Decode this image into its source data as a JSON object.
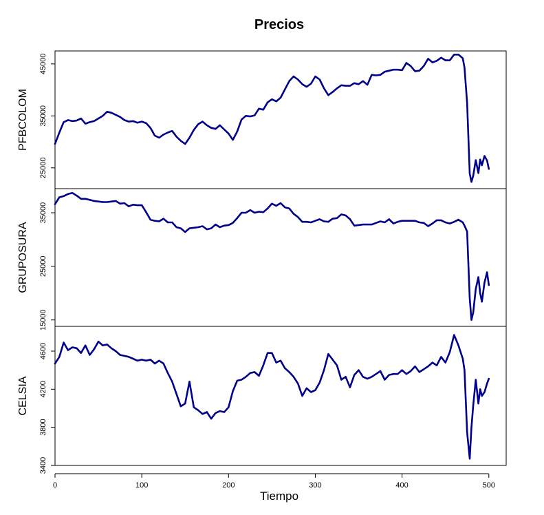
{
  "chart_data": {
    "type": "line",
    "title": "Precios",
    "xlabel": "Tiempo",
    "xlim": [
      0,
      520
    ],
    "x_ticks": [
      0,
      100,
      200,
      300,
      400,
      500
    ],
    "line_color": "#00008B",
    "grid": false,
    "panels": [
      {
        "name": "PFBCOLOM",
        "ylim": [
          21000,
          47500
        ],
        "y_ticks": [
          25000,
          35000,
          45000
        ],
        "series": {
          "x": [
            0,
            5,
            10,
            15,
            20,
            25,
            30,
            35,
            40,
            45,
            50,
            55,
            60,
            65,
            70,
            75,
            80,
            85,
            90,
            95,
            100,
            105,
            110,
            115,
            120,
            125,
            130,
            135,
            140,
            145,
            150,
            155,
            160,
            165,
            170,
            175,
            180,
            185,
            190,
            195,
            200,
            205,
            210,
            215,
            220,
            225,
            230,
            235,
            240,
            245,
            250,
            255,
            260,
            265,
            270,
            275,
            280,
            285,
            290,
            295,
            300,
            305,
            310,
            315,
            320,
            325,
            330,
            335,
            340,
            345,
            350,
            355,
            360,
            365,
            370,
            375,
            380,
            385,
            390,
            395,
            400,
            405,
            410,
            415,
            420,
            425,
            430,
            435,
            440,
            445,
            450,
            455,
            460,
            465,
            470,
            472,
            475,
            478,
            480,
            482,
            485,
            488,
            490,
            492,
            495,
            498,
            500
          ],
          "values": [
            29600,
            31800,
            33800,
            34200,
            34000,
            34100,
            34500,
            33500,
            33800,
            34000,
            34500,
            35000,
            35800,
            35600,
            35200,
            34800,
            34200,
            33900,
            34000,
            33700,
            33900,
            33600,
            32700,
            31200,
            30800,
            31400,
            31800,
            32100,
            31000,
            30200,
            29600,
            30800,
            32300,
            33400,
            33900,
            33200,
            32700,
            32500,
            33200,
            32400,
            31600,
            30400,
            32000,
            34300,
            35000,
            34900,
            35100,
            36400,
            36200,
            37600,
            38200,
            37800,
            38500,
            40100,
            41700,
            42600,
            42000,
            41100,
            40600,
            41200,
            42600,
            42000,
            40300,
            39000,
            39600,
            40300,
            40900,
            40800,
            40800,
            41300,
            41100,
            41700,
            41000,
            42900,
            42800,
            42900,
            43500,
            43700,
            43900,
            43900,
            43800,
            45200,
            44600,
            43600,
            43700,
            44600,
            46000,
            45300,
            45600,
            46200,
            45700,
            45700,
            46800,
            46800,
            46100,
            44300,
            37500,
            23900,
            22300,
            23500,
            26500,
            24000,
            26600,
            25500,
            27300,
            26400,
            24800
          ]
        }
      },
      {
        "name": "GRUPOSURA",
        "ylim": [
          13800,
          39500
        ],
        "y_ticks": [
          15000,
          25000,
          35000
        ],
        "series": {
          "x": [
            0,
            5,
            10,
            15,
            20,
            25,
            30,
            35,
            40,
            45,
            50,
            55,
            60,
            65,
            70,
            75,
            80,
            85,
            90,
            95,
            100,
            105,
            110,
            115,
            120,
            125,
            130,
            135,
            140,
            145,
            150,
            155,
            160,
            165,
            170,
            175,
            180,
            185,
            190,
            195,
            200,
            205,
            210,
            215,
            220,
            225,
            230,
            235,
            240,
            245,
            250,
            255,
            260,
            265,
            270,
            275,
            280,
            285,
            290,
            295,
            300,
            305,
            310,
            315,
            320,
            325,
            330,
            335,
            340,
            345,
            350,
            355,
            360,
            365,
            370,
            375,
            380,
            385,
            390,
            395,
            400,
            405,
            410,
            415,
            420,
            425,
            430,
            435,
            440,
            445,
            450,
            455,
            460,
            465,
            470,
            472,
            475,
            478,
            480,
            482,
            485,
            488,
            490,
            492,
            495,
            498,
            500
          ],
          "values": [
            36600,
            37900,
            38100,
            38500,
            38700,
            38200,
            37600,
            37600,
            37400,
            37200,
            37100,
            37000,
            37000,
            37100,
            37200,
            36700,
            36800,
            36200,
            36500,
            36400,
            36400,
            35100,
            33700,
            33500,
            33400,
            33900,
            33200,
            33200,
            32300,
            32100,
            31400,
            32100,
            32200,
            32300,
            32500,
            31900,
            32100,
            32800,
            32300,
            32600,
            32700,
            33100,
            34000,
            35000,
            35000,
            35500,
            35000,
            35200,
            35100,
            35800,
            36700,
            36300,
            36800,
            36000,
            35800,
            34800,
            34200,
            33300,
            33300,
            33200,
            33500,
            33800,
            33400,
            33300,
            33900,
            34000,
            34700,
            34500,
            33800,
            32600,
            32700,
            32800,
            32800,
            32800,
            33100,
            33400,
            33200,
            33800,
            33000,
            33300,
            33500,
            33500,
            33500,
            33500,
            33200,
            33100,
            32500,
            33000,
            33600,
            33600,
            33200,
            33000,
            33300,
            33700,
            33200,
            32600,
            31500,
            19000,
            15000,
            16400,
            20800,
            23000,
            20000,
            18400,
            22000,
            23900,
            21500
          ]
        }
      },
      {
        "name": "CELSIA",
        "ylim": [
          3400,
          4860
        ],
        "y_ticks": [
          3400,
          3800,
          4200,
          4600
        ],
        "series": {
          "x": [
            0,
            5,
            10,
            15,
            20,
            25,
            30,
            35,
            40,
            45,
            50,
            55,
            60,
            65,
            70,
            75,
            80,
            85,
            90,
            95,
            100,
            105,
            110,
            115,
            120,
            125,
            130,
            135,
            140,
            145,
            150,
            155,
            160,
            165,
            170,
            175,
            180,
            185,
            190,
            195,
            200,
            205,
            210,
            215,
            220,
            225,
            230,
            235,
            240,
            245,
            250,
            255,
            260,
            265,
            270,
            275,
            280,
            285,
            290,
            295,
            300,
            305,
            310,
            315,
            320,
            325,
            330,
            335,
            340,
            345,
            350,
            355,
            360,
            365,
            370,
            375,
            380,
            385,
            390,
            395,
            400,
            405,
            410,
            415,
            420,
            425,
            430,
            435,
            440,
            445,
            450,
            455,
            460,
            465,
            470,
            472,
            475,
            478,
            480,
            482,
            485,
            488,
            490,
            492,
            495,
            498,
            500
          ],
          "values": [
            4470,
            4540,
            4690,
            4610,
            4640,
            4630,
            4580,
            4660,
            4560,
            4620,
            4700,
            4660,
            4670,
            4630,
            4600,
            4560,
            4550,
            4540,
            4520,
            4500,
            4510,
            4500,
            4510,
            4470,
            4500,
            4470,
            4370,
            4280,
            4150,
            4020,
            4050,
            4280,
            4010,
            3980,
            3940,
            3960,
            3890,
            3950,
            3970,
            3960,
            4010,
            4180,
            4290,
            4300,
            4330,
            4370,
            4380,
            4340,
            4450,
            4580,
            4580,
            4480,
            4500,
            4420,
            4380,
            4330,
            4260,
            4130,
            4210,
            4170,
            4190,
            4270,
            4400,
            4570,
            4510,
            4450,
            4300,
            4330,
            4220,
            4350,
            4400,
            4330,
            4310,
            4330,
            4360,
            4390,
            4300,
            4350,
            4360,
            4360,
            4400,
            4360,
            4390,
            4440,
            4380,
            4410,
            4440,
            4480,
            4450,
            4540,
            4480,
            4590,
            4770,
            4660,
            4520,
            4400,
            3750,
            3470,
            3800,
            4030,
            4300,
            4050,
            4200,
            4130,
            4170,
            4260,
            4310
          ]
        }
      }
    ]
  }
}
